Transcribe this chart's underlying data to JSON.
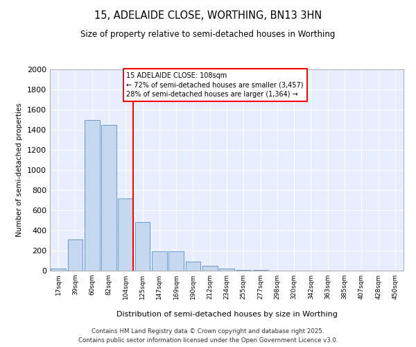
{
  "title1": "15, ADELAIDE CLOSE, WORTHING, BN13 3HN",
  "title2": "Size of property relative to semi-detached houses in Worthing",
  "xlabel": "Distribution of semi-detached houses by size in Worthing",
  "ylabel": "Number of semi-detached properties",
  "bin_labels": [
    "17sqm",
    "39sqm",
    "60sqm",
    "82sqm",
    "104sqm",
    "125sqm",
    "147sqm",
    "169sqm",
    "190sqm",
    "212sqm",
    "234sqm",
    "255sqm",
    "277sqm",
    "298sqm",
    "320sqm",
    "342sqm",
    "363sqm",
    "385sqm",
    "407sqm",
    "428sqm",
    "450sqm"
  ],
  "bar_values": [
    20,
    310,
    1500,
    1450,
    720,
    480,
    195,
    195,
    88,
    50,
    20,
    5,
    5,
    2,
    2,
    1,
    1,
    1,
    1,
    1,
    1
  ],
  "bar_color": "#c5d8f0",
  "bar_edge_color": "#6699cc",
  "vline_color": "red",
  "annotation_title": "15 ADELAIDE CLOSE: 108sqm",
  "annotation_line1": "← 72% of semi-detached houses are smaller (3,457)",
  "annotation_line2": "28% of semi-detached houses are larger (1,364) →",
  "ylim": [
    0,
    2000
  ],
  "yticks": [
    0,
    200,
    400,
    600,
    800,
    1000,
    1200,
    1400,
    1600,
    1800,
    2000
  ],
  "footer1": "Contains HM Land Registry data © Crown copyright and database right 2025.",
  "footer2": "Contains public sector information licensed under the Open Government Licence v3.0.",
  "bg_color": "#e8eeff",
  "grid_color": "#ffffff",
  "vline_bin_index": 4
}
